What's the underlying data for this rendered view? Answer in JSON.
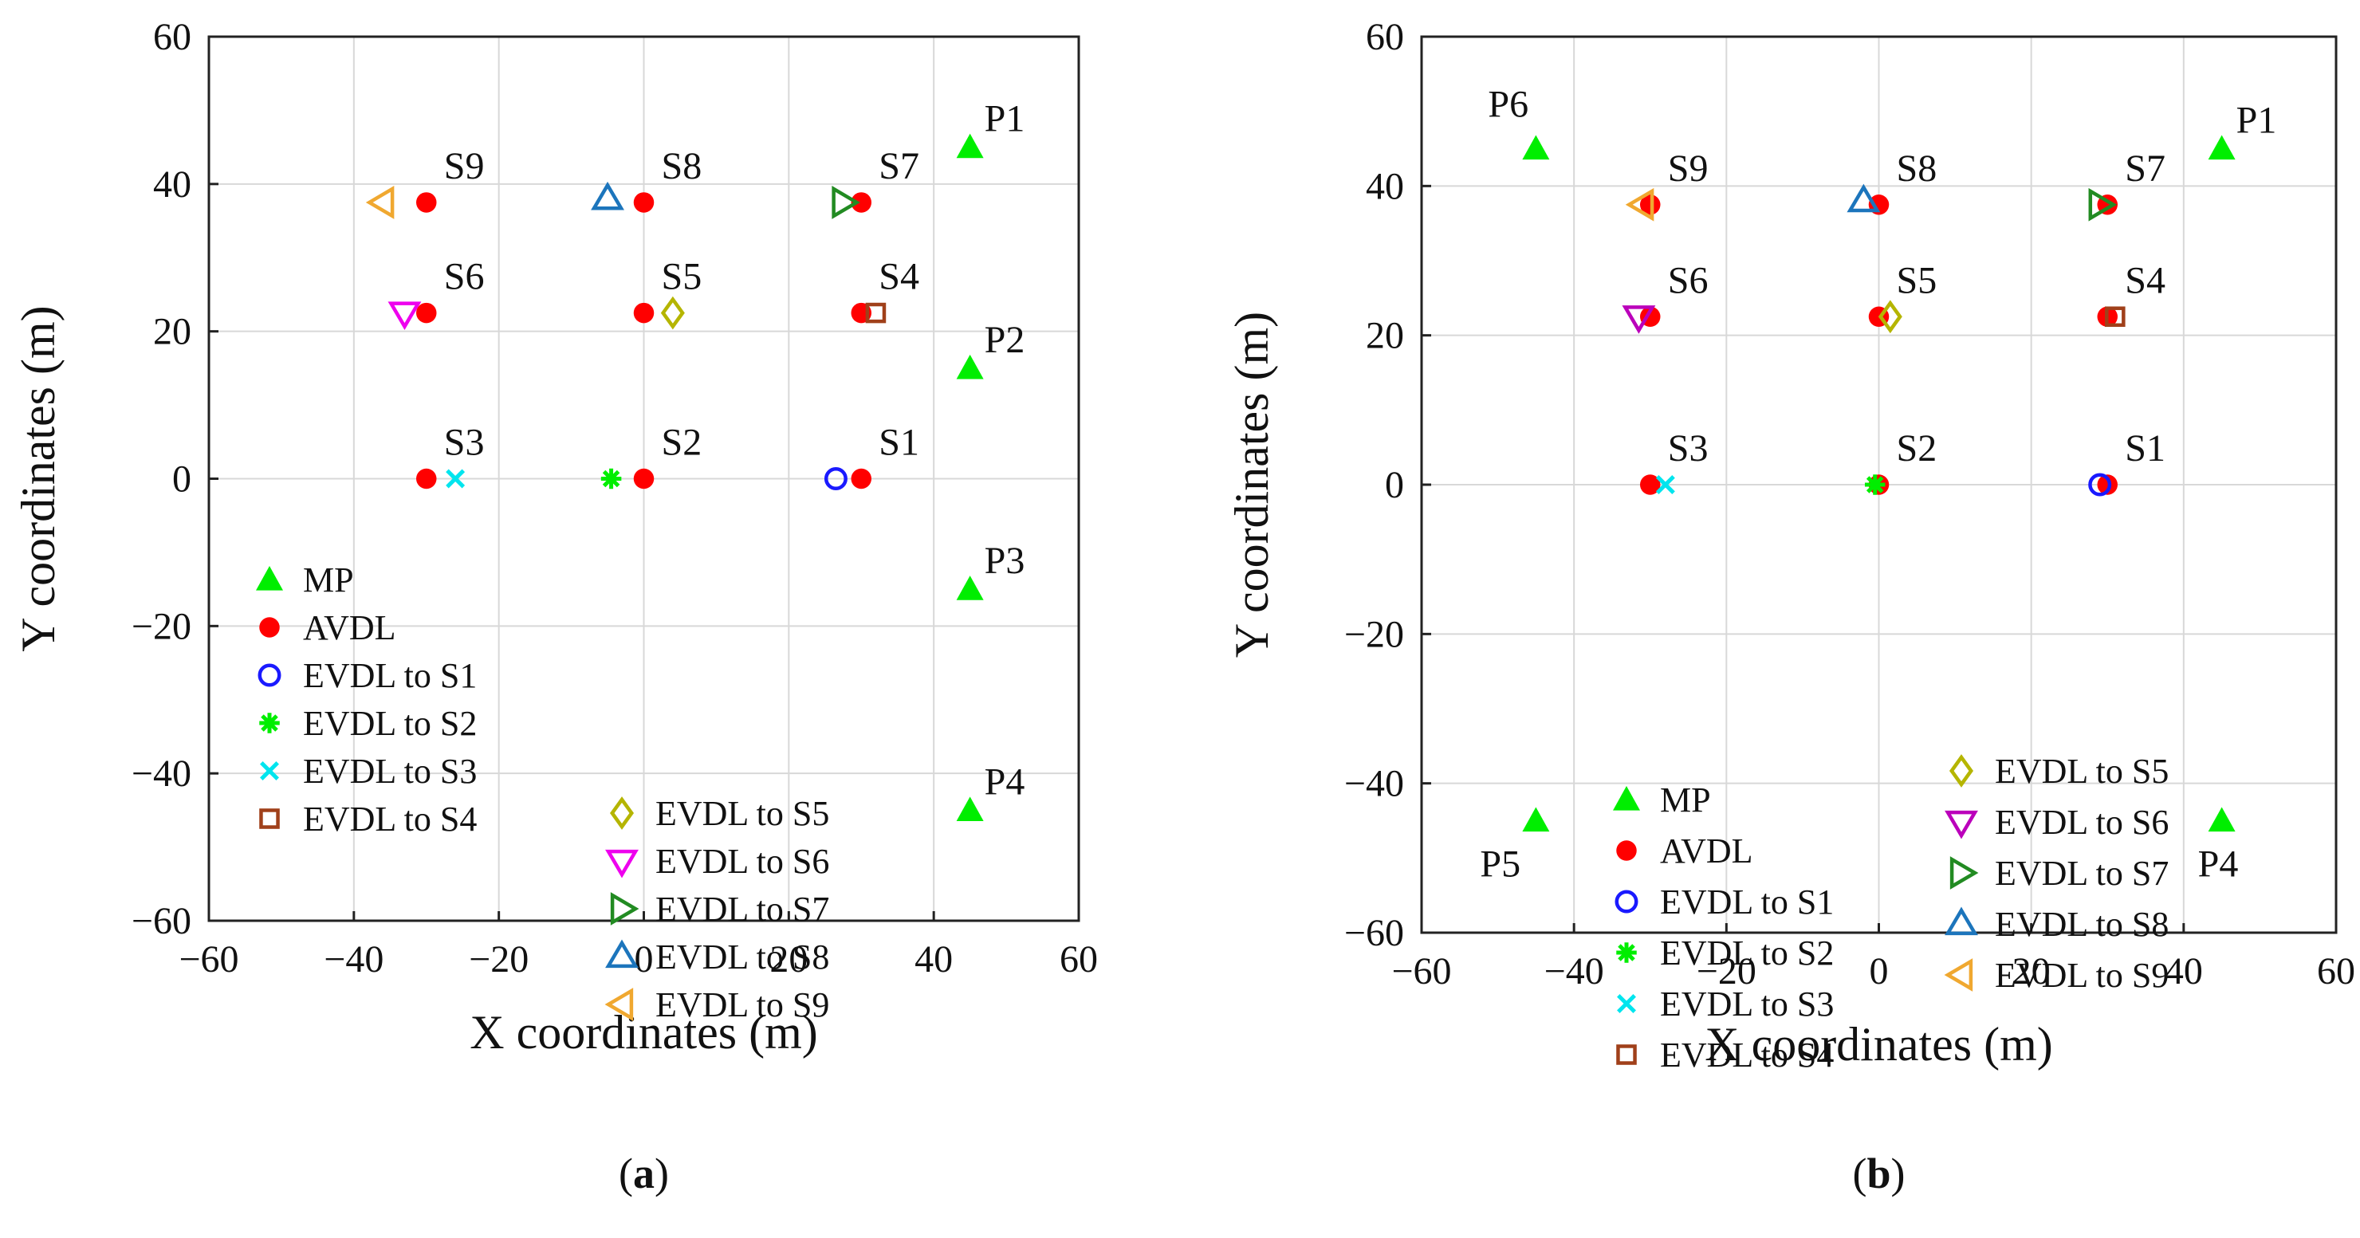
{
  "chart_data": [
    {
      "type": "scatter",
      "panel": "a",
      "panel_label": "(a)",
      "xlabel": "X coordinates (m)",
      "ylabel": "Y coordinates (m)",
      "xlim": [
        -60,
        60
      ],
      "ylim": [
        -60,
        60
      ],
      "xticks": [
        -60,
        -40,
        -20,
        0,
        20,
        40,
        60
      ],
      "yticks": [
        -60,
        -40,
        -20,
        0,
        20,
        40,
        60
      ],
      "grid": true,
      "legend_layout": "two-column, lower-center",
      "legend_columns": [
        [
          "MP",
          "AVDL",
          "EVDL to S1",
          "EVDL to S2",
          "EVDL to S3",
          "EVDL to S4"
        ],
        [
          "EVDL to S5",
          "EVDL to S6",
          "EVDL to S7",
          "EVDL to S8",
          "EVDL to S9"
        ]
      ],
      "series": [
        {
          "name": "MP",
          "marker": "triangle-filled",
          "color": "#00ee00",
          "points": [
            [
              45,
              45,
              "P1"
            ],
            [
              45,
              15,
              "P2"
            ],
            [
              45,
              -15,
              "P3"
            ],
            [
              45,
              -45,
              "P4"
            ]
          ]
        },
        {
          "name": "AVDL",
          "marker": "circle-filled",
          "color": "#ff0000",
          "points": [
            [
              30,
              0,
              "S1"
            ],
            [
              0,
              0,
              "S2"
            ],
            [
              -30,
              0,
              "S3"
            ],
            [
              30,
              22.5,
              "S4"
            ],
            [
              0,
              22.5,
              "S5"
            ],
            [
              -30,
              22.5,
              "S6"
            ],
            [
              30,
              37.5,
              "S7"
            ],
            [
              0,
              37.5,
              "S8"
            ],
            [
              -30,
              37.5,
              "S9"
            ]
          ]
        },
        {
          "name": "EVDL to S1",
          "marker": "circle-open",
          "color": "#1a1aff",
          "points": [
            [
              26.5,
              0
            ]
          ]
        },
        {
          "name": "EVDL to S2",
          "marker": "asterisk",
          "color": "#00ee00",
          "points": [
            [
              -4.5,
              0
            ]
          ]
        },
        {
          "name": "EVDL to S3",
          "marker": "x",
          "color": "#00e5ee",
          "points": [
            [
              -26,
              0
            ]
          ]
        },
        {
          "name": "EVDL to S4",
          "marker": "square-open",
          "color": "#a0401a",
          "points": [
            [
              32,
              22.5
            ]
          ]
        },
        {
          "name": "EVDL to S5",
          "marker": "diamond-open",
          "color": "#b5b500",
          "points": [
            [
              4,
              22.5
            ]
          ]
        },
        {
          "name": "EVDL to S6",
          "marker": "triangle-down-open",
          "color": "#ee00ee",
          "points": [
            [
              -33,
              22.5
            ]
          ]
        },
        {
          "name": "EVDL to S7",
          "marker": "triangle-right-open",
          "color": "#228b22",
          "points": [
            [
              27.5,
              37.5
            ]
          ]
        },
        {
          "name": "EVDL to S8",
          "marker": "triangle-up-open",
          "color": "#1c75bc",
          "points": [
            [
              -5,
              38
            ]
          ]
        },
        {
          "name": "EVDL to S9",
          "marker": "triangle-left-open",
          "color": "#f0a830",
          "points": [
            [
              -36,
              37.5
            ]
          ]
        }
      ]
    },
    {
      "type": "scatter",
      "panel": "b",
      "panel_label": "(b)",
      "xlabel": "X coordinates (m)",
      "ylabel": "Y coordinates (m)",
      "xlim": [
        -60,
        60
      ],
      "ylim": [
        -60,
        60
      ],
      "xticks": [
        -60,
        -40,
        -20,
        0,
        20,
        40,
        60
      ],
      "yticks": [
        -60,
        -40,
        -20,
        0,
        20,
        40,
        60
      ],
      "grid": true,
      "legend_layout": "two-column, center",
      "legend_columns": [
        [
          "MP",
          "AVDL",
          "EVDL to S1",
          "EVDL to S2",
          "EVDL to S3",
          "EVDL to S4"
        ],
        [
          "EVDL to S5",
          "EVDL to S6",
          "EVDL to S7",
          "EVDL to S8",
          "EVDL to S9"
        ]
      ],
      "series": [
        {
          "name": "MP",
          "marker": "triangle-filled",
          "color": "#00ee00",
          "points": [
            [
              45,
              45,
              "P1"
            ],
            [
              45,
              -45,
              "P4"
            ],
            [
              -45,
              -45,
              "P5"
            ],
            [
              -45,
              45,
              "P6"
            ]
          ]
        },
        {
          "name": "AVDL",
          "marker": "circle-filled",
          "color": "#ff0000",
          "points": [
            [
              30,
              0,
              "S1"
            ],
            [
              0,
              0,
              "S2"
            ],
            [
              -30,
              0,
              "S3"
            ],
            [
              30,
              22.5,
              "S4"
            ],
            [
              0,
              22.5,
              "S5"
            ],
            [
              -30,
              22.5,
              "S6"
            ],
            [
              30,
              37.5,
              "S7"
            ],
            [
              0,
              37.5,
              "S8"
            ],
            [
              -30,
              37.5,
              "S9"
            ]
          ]
        },
        {
          "name": "EVDL to S1",
          "marker": "circle-open",
          "color": "#1a1aff",
          "points": [
            [
              29,
              0
            ]
          ]
        },
        {
          "name": "EVDL to S2",
          "marker": "asterisk",
          "color": "#00ee00",
          "points": [
            [
              -0.5,
              0
            ]
          ]
        },
        {
          "name": "EVDL to S3",
          "marker": "x",
          "color": "#00e5ee",
          "points": [
            [
              -28,
              0
            ]
          ]
        },
        {
          "name": "EVDL to S4",
          "marker": "square-open",
          "color": "#a0401a",
          "points": [
            [
              31,
              22.5
            ]
          ]
        },
        {
          "name": "EVDL to S5",
          "marker": "diamond-open",
          "color": "#b5b500",
          "points": [
            [
              1.5,
              22.5
            ]
          ]
        },
        {
          "name": "EVDL to S6",
          "marker": "triangle-down-open",
          "color": "#bb00bb",
          "points": [
            [
              -31.5,
              22.5
            ]
          ]
        },
        {
          "name": "EVDL to S7",
          "marker": "triangle-right-open",
          "color": "#228b22",
          "points": [
            [
              29,
              37.5
            ]
          ]
        },
        {
          "name": "EVDL to S8",
          "marker": "triangle-up-open",
          "color": "#1c75bc",
          "points": [
            [
              -2,
              38
            ]
          ]
        },
        {
          "name": "EVDL to S9",
          "marker": "triangle-left-open",
          "color": "#f0a830",
          "points": [
            [
              -31,
              37.5
            ]
          ]
        }
      ]
    }
  ]
}
